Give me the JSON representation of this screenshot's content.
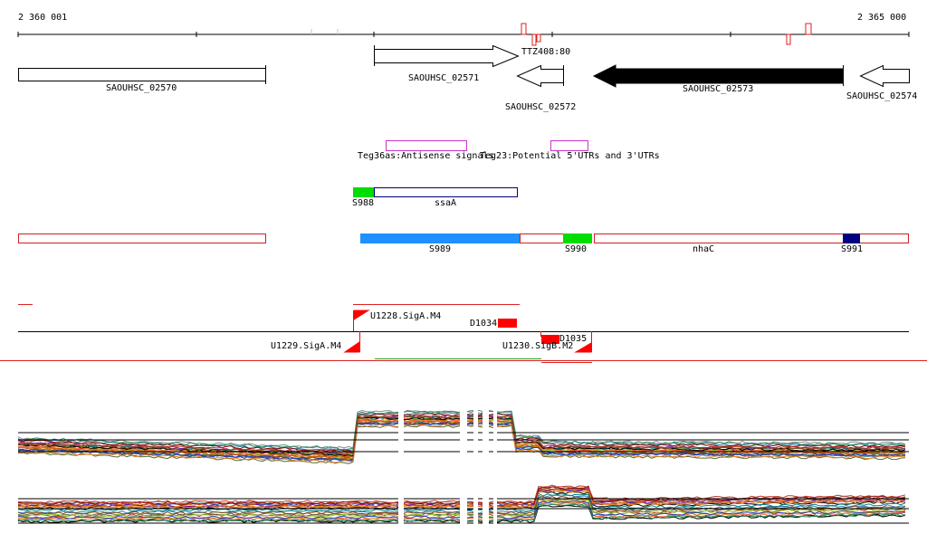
{
  "ruler": {
    "start": "2 360 001",
    "end": "2 365 000"
  },
  "genes": {
    "g2570": "SAOUHSC_02570",
    "g2571": "SAOUHSC_02571",
    "g2572": "SAOUHSC_02572",
    "g2573": "SAOUHSC_02573",
    "g2574": "SAOUHSC_02574",
    "ttz": "TTZ408:80"
  },
  "teg": {
    "teg36as": "Teg36as:Antisense signals",
    "teg23": "Teg23:Potential 5'UTRs and 3'UTRs"
  },
  "ssa": {
    "s988": "S988",
    "ssaA": "ssaA"
  },
  "segments": {
    "s989": "S989",
    "s990": "S990",
    "nhaC": "nhaC",
    "s991": "S991"
  },
  "promoters": {
    "u1228": "U1228.SigA.M4",
    "d1034": "D1034",
    "u1229": "U1229.SigA.M4",
    "d1035": "D1035",
    "u1230": "U1230.SigB.M2"
  },
  "colors": {
    "outline_red": "#cc2222",
    "blue": "#1e90ff",
    "green": "#00dd00",
    "navy": "#000080",
    "magenta": "#cc33cc",
    "promoter_red": "#ff0000"
  }
}
